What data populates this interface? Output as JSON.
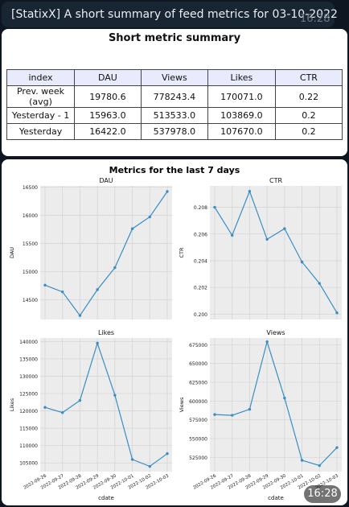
{
  "message": {
    "text": "[StatixX] A short summary of feed metrics for 03-10-2022",
    "time": "16:28"
  },
  "summary_table": {
    "title": "Short metric summary",
    "headers": [
      "index",
      "DAU",
      "Views",
      "Likes",
      "CTR"
    ],
    "rows": [
      [
        "Prev. week (avg)",
        "19780.6",
        "778243.4",
        "170071.0",
        "0.22"
      ],
      [
        "Yesterday - 1",
        "15963.0",
        "513533.0",
        "103869.0",
        "0.2"
      ],
      [
        "Yesterday",
        "16422.0",
        "537978.0",
        "107670.0",
        "0.2"
      ]
    ]
  },
  "charts_figure": {
    "title": "Metrics for the last 7 days",
    "time": "16:28"
  },
  "chart_data": [
    {
      "type": "line",
      "title": "DAU",
      "xlabel": "",
      "ylabel": "DAU",
      "x": [
        "2022-09-26",
        "2022-09-27",
        "2022-09-28",
        "2022-09-29",
        "2022-09-30",
        "2022-10-01",
        "2022-10-02",
        "2022-10-03"
      ],
      "values": [
        14760,
        14640,
        14220,
        14680,
        15070,
        15760,
        15970,
        16420
      ],
      "yticks": [
        14500,
        15000,
        15500,
        16000,
        16500
      ],
      "ylim": [
        14150,
        16520
      ],
      "grid": true,
      "color": "#3a8dc4"
    },
    {
      "type": "line",
      "title": "CTR",
      "xlabel": "",
      "ylabel": "CTR",
      "x": [
        "2022-09-26",
        "2022-09-27",
        "2022-09-28",
        "2022-09-29",
        "2022-09-30",
        "2022-10-01",
        "2022-10-02",
        "2022-10-03"
      ],
      "values": [
        0.208,
        0.2059,
        0.2092,
        0.2056,
        0.2064,
        0.2039,
        0.2023,
        0.2001
      ],
      "yticks": [
        0.2,
        0.202,
        0.204,
        0.206,
        0.208
      ],
      "ylim": [
        0.1996,
        0.2096
      ],
      "grid": true,
      "color": "#3a8dc4"
    },
    {
      "type": "line",
      "title": "Likes",
      "xlabel": "cdate",
      "ylabel": "Likes",
      "x": [
        "2022-09-26",
        "2022-09-27",
        "2022-09-28",
        "2022-09-29",
        "2022-09-30",
        "2022-10-01",
        "2022-10-02",
        "2022-10-03"
      ],
      "values": [
        121000,
        119500,
        123000,
        139500,
        124500,
        106000,
        104000,
        107670
      ],
      "yticks": [
        105000,
        110000,
        115000,
        120000,
        125000,
        130000,
        135000,
        140000
      ],
      "ylim": [
        102500,
        141000
      ],
      "grid": true,
      "color": "#3a8dc4"
    },
    {
      "type": "line",
      "title": "Views",
      "xlabel": "cdate",
      "ylabel": "Views",
      "x": [
        "2022-09-26",
        "2022-09-27",
        "2022-09-28",
        "2022-09-29",
        "2022-09-30",
        "2022-10-01",
        "2022-10-02",
        "2022-10-03"
      ],
      "values": [
        582000,
        581000,
        589000,
        679000,
        604000,
        521000,
        514000,
        537978
      ],
      "yticks": [
        525000,
        550000,
        575000,
        600000,
        625000,
        650000,
        675000
      ],
      "ylim": [
        506000,
        684000
      ],
      "grid": true,
      "color": "#3a8dc4"
    }
  ]
}
